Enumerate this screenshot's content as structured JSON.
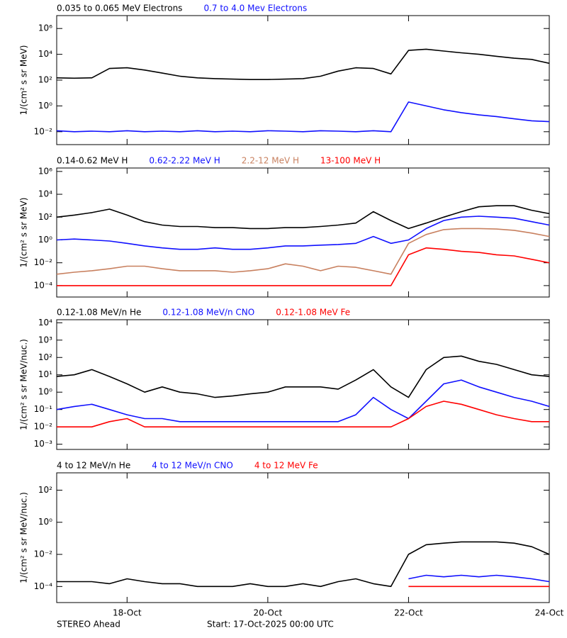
{
  "chart_data": [
    {
      "type": "line",
      "yscale": "log",
      "ylabel": "1/(cm² s sr MeV)",
      "xlim": [
        0,
        7
      ],
      "xticks": [
        1,
        3,
        5,
        7
      ],
      "ylim": [
        0.001,
        10000000
      ],
      "yticks": [
        {
          "value": 0.01,
          "label": "10⁻²"
        },
        {
          "value": 1,
          "label": "10⁰"
        },
        {
          "value": 100,
          "label": "10²"
        },
        {
          "value": 10000,
          "label": "10⁴"
        },
        {
          "value": 1000000,
          "label": "10⁶"
        }
      ],
      "x": [
        0,
        0.25,
        0.5,
        0.75,
        1,
        1.25,
        1.5,
        1.75,
        2,
        2.25,
        2.5,
        2.75,
        3,
        3.25,
        3.5,
        3.75,
        4,
        4.25,
        4.5,
        4.75,
        5,
        5.25,
        5.5,
        5.75,
        6,
        6.25,
        6.5,
        6.75,
        7
      ],
      "series": [
        {
          "name": "0.035 to 0.065 MeV Electrons",
          "color": "#000000",
          "values": [
            150,
            140,
            150,
            800,
            900,
            600,
            350,
            200,
            150,
            130,
            120,
            110,
            110,
            120,
            130,
            200,
            500,
            900,
            800,
            300,
            20000,
            25000,
            18000,
            13000,
            10000,
            7000,
            5000,
            4000,
            2000
          ]
        },
        {
          "name": "0.7 to 4.0 Mev Electrons",
          "color": "#1010ff",
          "values": [
            0.012,
            0.01,
            0.011,
            0.01,
            0.012,
            0.01,
            0.011,
            0.01,
            0.012,
            0.01,
            0.011,
            0.01,
            0.012,
            0.011,
            0.01,
            0.012,
            0.011,
            0.01,
            0.012,
            0.01,
            2,
            1,
            0.5,
            0.3,
            0.2,
            0.15,
            0.1,
            0.07,
            0.06
          ]
        }
      ]
    },
    {
      "type": "line",
      "yscale": "log",
      "ylabel": "1/(cm² s sr MeV)",
      "xlim": [
        0,
        7
      ],
      "xticks": [
        1,
        3,
        5,
        7
      ],
      "ylim": [
        1e-05,
        2000000
      ],
      "yticks": [
        {
          "value": 0.0001,
          "label": "10⁻⁴"
        },
        {
          "value": 0.01,
          "label": "10⁻²"
        },
        {
          "value": 1,
          "label": "10⁰"
        },
        {
          "value": 100,
          "label": "10²"
        },
        {
          "value": 10000,
          "label": "10⁴"
        },
        {
          "value": 1000000,
          "label": "10⁶"
        }
      ],
      "x": [
        0,
        0.25,
        0.5,
        0.75,
        1,
        1.25,
        1.5,
        1.75,
        2,
        2.25,
        2.5,
        2.75,
        3,
        3.25,
        3.5,
        3.75,
        4,
        4.25,
        4.5,
        4.75,
        5,
        5.25,
        5.5,
        5.75,
        6,
        6.25,
        6.5,
        6.75,
        7
      ],
      "series": [
        {
          "name": "0.14-0.62 MeV H",
          "color": "#000000",
          "values": [
            100,
            150,
            250,
            500,
            150,
            40,
            20,
            15,
            15,
            12,
            12,
            10,
            10,
            12,
            12,
            15,
            20,
            30,
            300,
            50,
            10,
            30,
            100,
            300,
            800,
            1000,
            1000,
            400,
            200
          ]
        },
        {
          "name": "0.62-2.22 MeV H",
          "color": "#1010ff",
          "values": [
            1,
            1.2,
            1,
            0.8,
            0.5,
            0.3,
            0.2,
            0.15,
            0.15,
            0.2,
            0.15,
            0.15,
            0.2,
            0.3,
            0.3,
            0.35,
            0.4,
            0.5,
            2,
            0.5,
            1,
            10,
            50,
            100,
            120,
            100,
            80,
            40,
            20
          ]
        },
        {
          "name": "2.2-12 MeV H",
          "color": "#c8805f",
          "values": [
            0.001,
            0.0015,
            0.002,
            0.003,
            0.005,
            0.005,
            0.003,
            0.002,
            0.002,
            0.002,
            0.0015,
            0.002,
            0.003,
            0.008,
            0.005,
            0.002,
            0.005,
            0.004,
            0.002,
            0.001,
            0.5,
            3,
            8,
            10,
            10,
            9,
            7,
            4,
            2
          ]
        },
        {
          "name": "13-100 MeV H",
          "color": "#ff0000",
          "values": [
            0.0001,
            0.0001,
            0.0001,
            0.0001,
            0.0001,
            0.0001,
            0.0001,
            0.0001,
            0.0001,
            0.0001,
            0.0001,
            0.0001,
            0.0001,
            0.0001,
            0.0001,
            0.0001,
            0.0001,
            0.0001,
            0.0001,
            0.0001,
            0.05,
            0.2,
            0.15,
            0.1,
            0.08,
            0.05,
            0.04,
            0.02,
            0.01
          ]
        }
      ]
    },
    {
      "type": "line",
      "yscale": "log",
      "ylabel": "1/(cm² s sr MeV/nuc.)",
      "xlim": [
        0,
        7
      ],
      "xticks": [
        1,
        3,
        5,
        7
      ],
      "ylim": [
        0.0005,
        15000
      ],
      "yticks": [
        {
          "value": 0.001,
          "label": "10⁻³"
        },
        {
          "value": 0.01,
          "label": "10⁻²"
        },
        {
          "value": 0.1,
          "label": "10⁻¹"
        },
        {
          "value": 1,
          "label": "10⁰"
        },
        {
          "value": 10,
          "label": "10¹"
        },
        {
          "value": 100,
          "label": "10²"
        },
        {
          "value": 1000,
          "label": "10³"
        },
        {
          "value": 10000,
          "label": "10⁴"
        }
      ],
      "x": [
        0,
        0.25,
        0.5,
        0.75,
        1,
        1.25,
        1.5,
        1.75,
        2,
        2.25,
        2.5,
        2.75,
        3,
        3.25,
        3.5,
        3.75,
        4,
        4.25,
        4.5,
        4.75,
        5,
        5.25,
        5.5,
        5.75,
        6,
        6.25,
        6.5,
        6.75,
        7
      ],
      "series": [
        {
          "name": "0.12-1.08 MeV/n He",
          "color": "#000000",
          "values": [
            8,
            10,
            20,
            8,
            3,
            1,
            2,
            1,
            0.8,
            0.5,
            0.6,
            0.8,
            1,
            2,
            2,
            2,
            1.5,
            5,
            20,
            2,
            0.5,
            20,
            100,
            120,
            60,
            40,
            20,
            10,
            8
          ]
        },
        {
          "name": "0.12-1.08 MeV/n CNO",
          "color": "#1010ff",
          "values": [
            0.1,
            0.15,
            0.2,
            0.1,
            0.05,
            0.03,
            0.03,
            0.02,
            0.02,
            0.02,
            0.02,
            0.02,
            0.02,
            0.02,
            0.02,
            0.02,
            0.02,
            0.05,
            0.5,
            0.1,
            0.03,
            0.3,
            3,
            5,
            2,
            1,
            0.5,
            0.3,
            0.15
          ]
        },
        {
          "name": "0.12-1.08 MeV Fe",
          "color": "#ff0000",
          "values": [
            0.01,
            0.01,
            0.01,
            0.02,
            0.03,
            0.01,
            0.01,
            0.01,
            0.01,
            0.01,
            0.01,
            0.01,
            0.01,
            0.01,
            0.01,
            0.01,
            0.01,
            0.01,
            0.01,
            0.01,
            0.03,
            0.15,
            0.3,
            0.2,
            0.1,
            0.05,
            0.03,
            0.02,
            0.02
          ]
        }
      ]
    },
    {
      "type": "line",
      "yscale": "log",
      "ylabel": "1/(cm² s sr MeV/nuc.)",
      "xlim": [
        0,
        7
      ],
      "xticks": [
        {
          "value": 1,
          "label": "18-Oct"
        },
        {
          "value": 3,
          "label": "20-Oct"
        },
        {
          "value": 5,
          "label": "22-Oct"
        },
        {
          "value": 7,
          "label": "24-Oct"
        }
      ],
      "ylim": [
        1e-05,
        1200
      ],
      "yticks": [
        {
          "value": 0.0001,
          "label": "10⁻⁴"
        },
        {
          "value": 0.01,
          "label": "10⁻²"
        },
        {
          "value": 1,
          "label": "10⁰"
        },
        {
          "value": 100,
          "label": "10²"
        }
      ],
      "x": [
        0,
        0.25,
        0.5,
        0.75,
        1,
        1.25,
        1.5,
        1.75,
        2,
        2.25,
        2.5,
        2.75,
        3,
        3.25,
        3.5,
        3.75,
        4,
        4.25,
        4.5,
        4.75,
        5,
        5.25,
        5.5,
        5.75,
        6,
        6.25,
        6.5,
        6.75,
        7
      ],
      "series": [
        {
          "name": "4 to 12 MeV/n He",
          "color": "#000000",
          "values": [
            0.0002,
            0.0002,
            0.0002,
            0.00015,
            0.0003,
            0.0002,
            0.00015,
            0.00015,
            0.0001,
            0.0001,
            0.0001,
            0.00015,
            0.0001,
            0.0001,
            0.00015,
            0.0001,
            0.0002,
            0.0003,
            0.00015,
            0.0001,
            0.01,
            0.04,
            0.05,
            0.06,
            0.06,
            0.06,
            0.05,
            0.03,
            0.01
          ]
        },
        {
          "name": "4 to 12 MeV/n CNO",
          "color": "#1010ff",
          "values": [
            null,
            null,
            null,
            null,
            null,
            null,
            null,
            null,
            null,
            null,
            null,
            null,
            null,
            null,
            null,
            null,
            null,
            null,
            null,
            null,
            0.0003,
            0.0005,
            0.0004,
            0.0005,
            0.0004,
            0.0005,
            0.0004,
            0.0003,
            0.0002
          ]
        },
        {
          "name": "4 to 12 MeV Fe",
          "color": "#ff0000",
          "values": [
            null,
            null,
            null,
            null,
            null,
            null,
            null,
            null,
            null,
            null,
            null,
            null,
            null,
            null,
            null,
            null,
            null,
            null,
            null,
            null,
            0.0001,
            0.0001,
            0.0001,
            0.0001,
            0.0001,
            0.0001,
            0.0001,
            0.0001,
            0.0001
          ]
        }
      ]
    }
  ],
  "footer": {
    "left": "STEREO Ahead",
    "center": "Start: 17-Oct-2025 00:00 UTC"
  }
}
